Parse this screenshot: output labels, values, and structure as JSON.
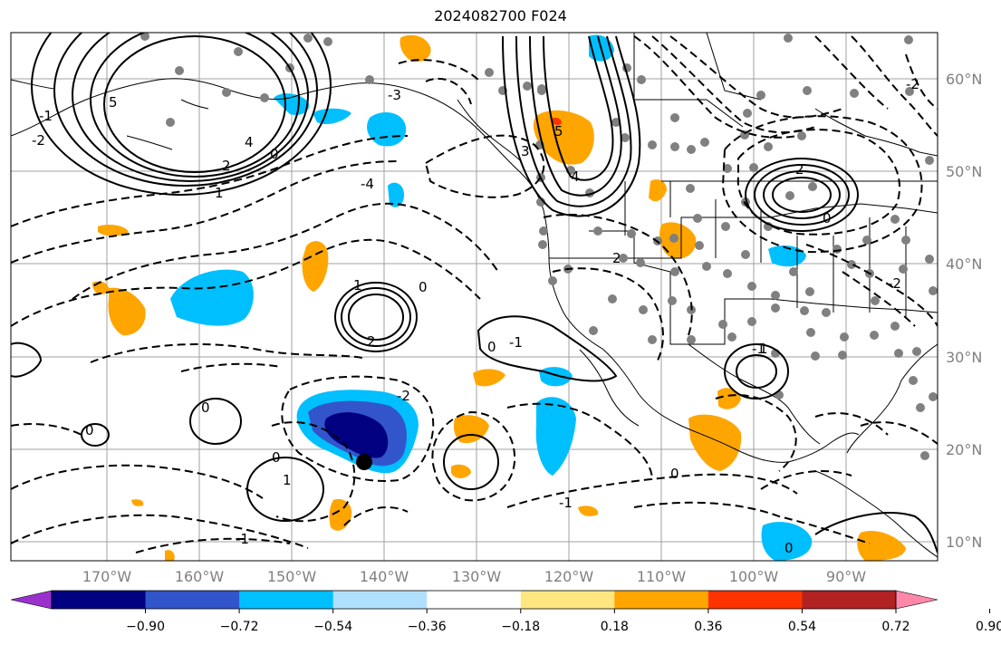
{
  "title": "2024082700 F024",
  "lat_labels": [
    "60°N",
    "50°N",
    "40°N",
    "30°N",
    "20°N",
    "10°N"
  ],
  "lon_labels": [
    "170°W",
    "160°W",
    "150°W",
    "140°W",
    "130°W",
    "120°W",
    "110°W",
    "100°W",
    "90°W"
  ],
  "colorbar": {
    "ticks": [
      "−0.90",
      "−0.72",
      "−0.54",
      "−0.36",
      "−0.18",
      "0.18",
      "0.36",
      "0.54",
      "0.72",
      "0.90"
    ],
    "colors": [
      "#9932cc",
      "#000080",
      "#3355cc",
      "#00bfff",
      "#b0e0ff",
      "#ffffff",
      "#ffe680",
      "#ffa500",
      "#ff3300",
      "#b22222",
      "#ff88aa"
    ]
  },
  "contour_labels": [
    "5",
    "4",
    "2",
    "1",
    "0",
    "-1",
    "-2",
    "-3",
    "-4",
    "2",
    "1",
    "0",
    "-2",
    "0",
    "-1",
    "0",
    "1",
    "3",
    "5",
    "4",
    "2",
    "0",
    "-1",
    "-2",
    "2",
    "0",
    "-2",
    "1",
    "0",
    "-1",
    "0",
    "-1",
    "0"
  ],
  "colors": {
    "grid": "#a0a0a0",
    "station": "#808080",
    "blue_light": "#00bfff",
    "blue_mid": "#3355cc",
    "blue_dark": "#000080",
    "orange": "#ffa500",
    "red": "#ff3300"
  }
}
